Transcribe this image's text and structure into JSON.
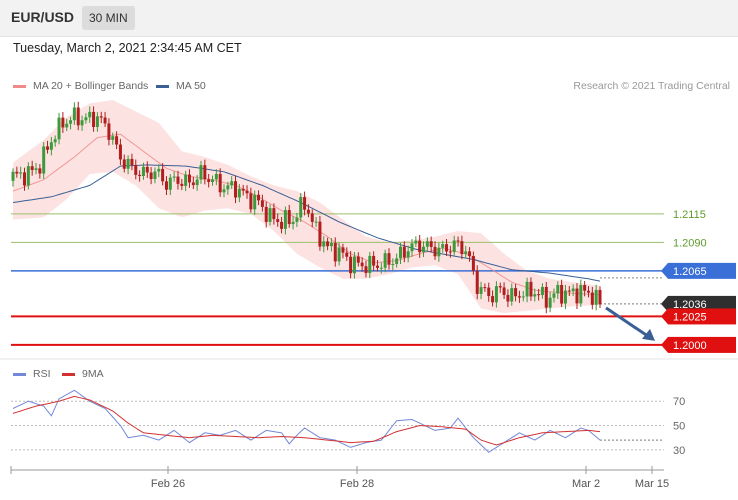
{
  "header": {
    "symbol": "EUR/USD",
    "timeframe": "30 MIN"
  },
  "datetime": "Tuesday, March 2, 2021 2:34:45 AM CET",
  "legend": {
    "ma20_label": "MA 20 + Bollinger Bands",
    "ma50_label": "MA 50",
    "credit": "Research © 2021 Trading Central"
  },
  "rsi_legend": {
    "rsi_label": "RSI",
    "ma_label": "9MA"
  },
  "colors": {
    "ma20": "#f08a8a",
    "band_fill": "#fde2e2",
    "ma50": "#3a5f95",
    "up": "#3c9a3c",
    "down": "#b01e1e",
    "support": "#e01010",
    "resistance": "#3a6fd8",
    "target": "#9bbf6a",
    "rsi": "#7288d8",
    "rsi_ma": "#d33030",
    "arrow": "#3a5f95"
  },
  "chart_data": [
    {
      "type": "candlestick",
      "title": "EUR/USD",
      "timeframe": "30 MIN",
      "x_ticks": [
        "Feb 26",
        "Feb 28",
        "Mar 2",
        "Mar 15"
      ],
      "ylim": [
        1.1985,
        1.2215
      ],
      "price_labels": [
        {
          "label": "1.2115",
          "value": 1.2115,
          "kind": "target"
        },
        {
          "label": "1.2090",
          "value": 1.209,
          "kind": "target"
        },
        {
          "label": "1.2065",
          "value": 1.2065,
          "kind": "resistance"
        },
        {
          "label": "1.2036",
          "value": 1.2036,
          "kind": "last"
        },
        {
          "label": "1.2025",
          "value": 1.2025,
          "kind": "support"
        },
        {
          "label": "1.2000",
          "value": 1.2,
          "kind": "support"
        }
      ],
      "close_anchors": [
        [
          0,
          1.2148
        ],
        [
          4,
          1.215
        ],
        [
          7,
          1.2158
        ],
        [
          10,
          1.218
        ],
        [
          13,
          1.2195
        ],
        [
          16,
          1.22
        ],
        [
          19,
          1.2198
        ],
        [
          22,
          1.22
        ],
        [
          25,
          1.2188
        ],
        [
          28,
          1.2164
        ],
        [
          31,
          1.2155
        ],
        [
          34,
          1.215
        ],
        [
          37,
          1.2152
        ],
        [
          40,
          1.2142
        ],
        [
          43,
          1.2145
        ],
        [
          46,
          1.2142
        ],
        [
          49,
          1.215
        ],
        [
          52,
          1.2145
        ],
        [
          55,
          1.2138
        ],
        [
          58,
          1.2138
        ],
        [
          61,
          1.213
        ],
        [
          64,
          1.2125
        ],
        [
          67,
          1.2112
        ],
        [
          70,
          1.2108
        ],
        [
          73,
          1.211
        ],
        [
          76,
          1.2125
        ],
        [
          79,
          1.21
        ],
        [
          82,
          1.2085
        ],
        [
          85,
          1.2082
        ],
        [
          88,
          1.2072
        ],
        [
          91,
          1.207
        ],
        [
          94,
          1.207
        ],
        [
          97,
          1.2072
        ],
        [
          100,
          1.2076
        ],
        [
          103,
          1.2085
        ],
        [
          106,
          1.2088
        ],
        [
          109,
          1.2085
        ],
        [
          112,
          1.2083
        ],
        [
          115,
          1.2088
        ],
        [
          118,
          1.2084
        ],
        [
          121,
          1.2052
        ],
        [
          124,
          1.2043
        ],
        [
          127,
          1.2048
        ],
        [
          130,
          1.2042
        ],
        [
          133,
          1.2046
        ],
        [
          136,
          1.2047
        ],
        [
          139,
          1.204
        ],
        [
          142,
          1.2046
        ],
        [
          145,
          1.2045
        ],
        [
          148,
          1.2047
        ],
        [
          151,
          1.2044
        ],
        [
          152,
          1.204
        ],
        [
          153,
          1.2036
        ]
      ],
      "ma50": [
        [
          0,
          1.2125
        ],
        [
          10,
          1.213
        ],
        [
          20,
          1.214
        ],
        [
          28,
          1.2157
        ],
        [
          35,
          1.2158
        ],
        [
          45,
          1.2157
        ],
        [
          55,
          1.2152
        ],
        [
          65,
          1.214
        ],
        [
          75,
          1.2125
        ],
        [
          85,
          1.2108
        ],
        [
          95,
          1.2094
        ],
        [
          105,
          1.2084
        ],
        [
          115,
          1.2078
        ],
        [
          120,
          1.2075
        ],
        [
          130,
          1.2066
        ],
        [
          140,
          1.2063
        ],
        [
          150,
          1.2058
        ],
        [
          153,
          1.2056
        ]
      ],
      "ma20": [
        [
          0,
          1.2135
        ],
        [
          8,
          1.2145
        ],
        [
          16,
          1.2165
        ],
        [
          22,
          1.2182
        ],
        [
          28,
          1.2185
        ],
        [
          34,
          1.217
        ],
        [
          40,
          1.2155
        ],
        [
          46,
          1.2148
        ],
        [
          52,
          1.2145
        ],
        [
          58,
          1.214
        ],
        [
          64,
          1.213
        ],
        [
          70,
          1.2118
        ],
        [
          76,
          1.2108
        ],
        [
          82,
          1.2095
        ],
        [
          88,
          1.208
        ],
        [
          94,
          1.2072
        ],
        [
          100,
          1.2074
        ],
        [
          106,
          1.208
        ],
        [
          112,
          1.2085
        ],
        [
          118,
          1.208
        ],
        [
          124,
          1.2068
        ],
        [
          130,
          1.2055
        ],
        [
          136,
          1.2048
        ],
        [
          142,
          1.2046
        ],
        [
          148,
          1.2045
        ],
        [
          153,
          1.2044
        ]
      ],
      "band_upper": [
        [
          0,
          1.216
        ],
        [
          8,
          1.218
        ],
        [
          14,
          1.22
        ],
        [
          20,
          1.2212
        ],
        [
          26,
          1.2215
        ],
        [
          32,
          1.2205
        ],
        [
          38,
          1.2195
        ],
        [
          44,
          1.217
        ],
        [
          50,
          1.2165
        ],
        [
          56,
          1.2158
        ],
        [
          62,
          1.2148
        ],
        [
          68,
          1.214
        ],
        [
          74,
          1.2135
        ],
        [
          80,
          1.2125
        ],
        [
          86,
          1.211
        ],
        [
          92,
          1.2095
        ],
        [
          98,
          1.209
        ],
        [
          104,
          1.2092
        ],
        [
          110,
          1.2095
        ],
        [
          116,
          1.21
        ],
        [
          122,
          1.2098
        ],
        [
          128,
          1.208
        ],
        [
          134,
          1.2065
        ],
        [
          140,
          1.2058
        ],
        [
          146,
          1.2055
        ],
        [
          153,
          1.2052
        ]
      ],
      "band_lower": [
        [
          0,
          1.211
        ],
        [
          8,
          1.2112
        ],
        [
          14,
          1.2128
        ],
        [
          20,
          1.215
        ],
        [
          26,
          1.2152
        ],
        [
          32,
          1.214
        ],
        [
          38,
          1.212
        ],
        [
          44,
          1.2112
        ],
        [
          50,
          1.2118
        ],
        [
          56,
          1.212
        ],
        [
          62,
          1.2115
        ],
        [
          68,
          1.21
        ],
        [
          74,
          1.208
        ],
        [
          80,
          1.2068
        ],
        [
          86,
          1.2058
        ],
        [
          92,
          1.2058
        ],
        [
          98,
          1.2062
        ],
        [
          104,
          1.2068
        ],
        [
          110,
          1.207
        ],
        [
          116,
          1.2062
        ],
        [
          122,
          1.2032
        ],
        [
          128,
          1.2028
        ],
        [
          134,
          1.203
        ],
        [
          140,
          1.2032
        ],
        [
          146,
          1.2034
        ],
        [
          153,
          1.2035
        ]
      ],
      "projection_to": 1.2
    },
    {
      "type": "line",
      "title": "RSI",
      "ylim": [
        20,
        85
      ],
      "y_ticks": [
        70,
        50,
        30
      ],
      "x_ticks": [
        "Feb 26",
        "Feb 28",
        "Mar 2",
        "Mar 15"
      ],
      "series": [
        {
          "name": "RSI",
          "values": [
            [
              0,
              64
            ],
            [
              4,
              70
            ],
            [
              8,
              66
            ],
            [
              10,
              58
            ],
            [
              12,
              72
            ],
            [
              16,
              79
            ],
            [
              20,
              70
            ],
            [
              24,
              64
            ],
            [
              28,
              50
            ],
            [
              30,
              40
            ],
            [
              34,
              42
            ],
            [
              38,
              38
            ],
            [
              42,
              46
            ],
            [
              46,
              36
            ],
            [
              50,
              44
            ],
            [
              54,
              42
            ],
            [
              58,
              46
            ],
            [
              62,
              38
            ],
            [
              66,
              46
            ],
            [
              70,
              44
            ],
            [
              72,
              35
            ],
            [
              74,
              42
            ],
            [
              76,
              48
            ],
            [
              80,
              40
            ],
            [
              84,
              38
            ],
            [
              88,
              32
            ],
            [
              92,
              36
            ],
            [
              96,
              38
            ],
            [
              100,
              54
            ],
            [
              104,
              55
            ],
            [
              106,
              52
            ],
            [
              110,
              46
            ],
            [
              114,
              48
            ],
            [
              116,
              56
            ],
            [
              120,
              40
            ],
            [
              124,
              28
            ],
            [
              128,
              36
            ],
            [
              132,
              44
            ],
            [
              136,
              38
            ],
            [
              140,
              46
            ],
            [
              144,
              40
            ],
            [
              148,
              48
            ],
            [
              150,
              46
            ],
            [
              153,
              38
            ]
          ]
        },
        {
          "name": "9MA",
          "values": [
            [
              0,
              60
            ],
            [
              6,
              66
            ],
            [
              12,
              70
            ],
            [
              16,
              74
            ],
            [
              20,
              71
            ],
            [
              26,
              62
            ],
            [
              30,
              52
            ],
            [
              34,
              44
            ],
            [
              40,
              42
            ],
            [
              46,
              40
            ],
            [
              52,
              42
            ],
            [
              58,
              41
            ],
            [
              64,
              40
            ],
            [
              70,
              41
            ],
            [
              76,
              40
            ],
            [
              82,
              38
            ],
            [
              88,
              36
            ],
            [
              94,
              37
            ],
            [
              100,
              45
            ],
            [
              106,
              50
            ],
            [
              112,
              49
            ],
            [
              118,
              47
            ],
            [
              122,
              38
            ],
            [
              126,
              34
            ],
            [
              132,
              40
            ],
            [
              138,
              44
            ],
            [
              144,
              45
            ],
            [
              150,
              46
            ],
            [
              153,
              45
            ]
          ]
        }
      ],
      "last_value": 38
    }
  ]
}
